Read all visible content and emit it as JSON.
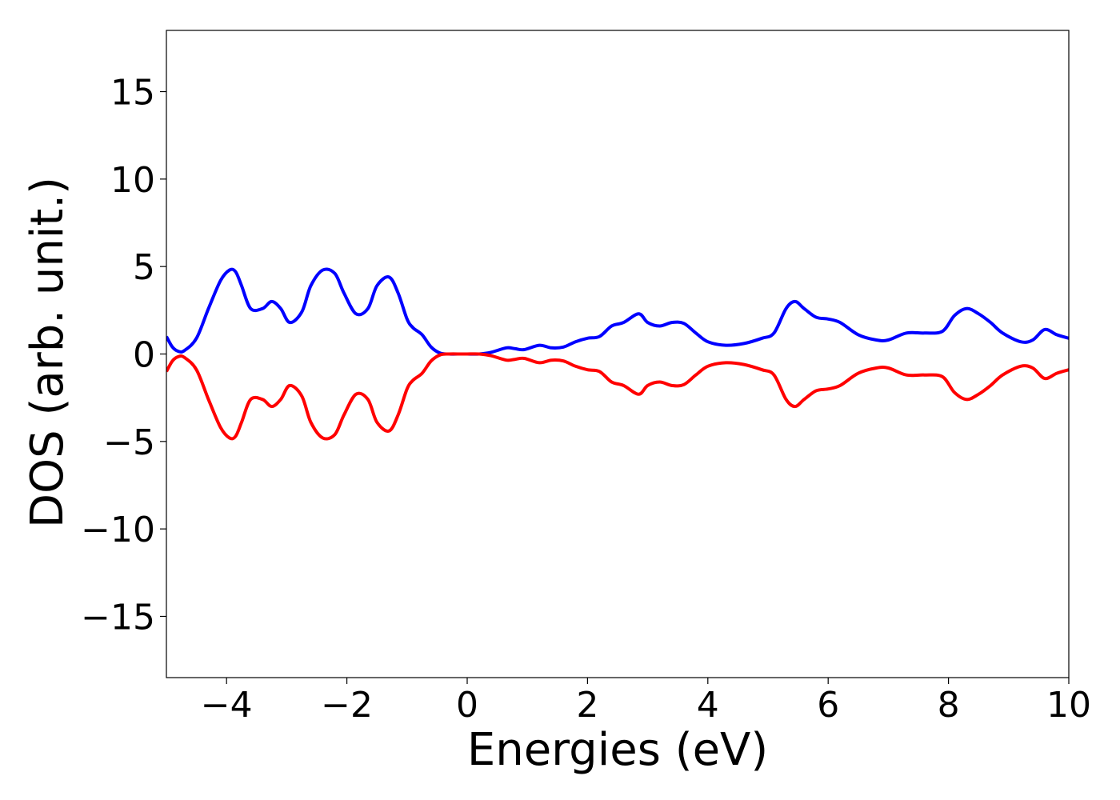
{
  "chart_data": {
    "type": "line",
    "xlabel": "Energies (eV)",
    "ylabel": "DOS (arb. unit.)",
    "xlim": [
      -5,
      10
    ],
    "ylim": [
      -18.5,
      18.5
    ],
    "xticks": [
      -4,
      -2,
      0,
      2,
      4,
      6,
      8,
      10
    ],
    "xtick_labels": [
      "−4",
      "−2",
      "0",
      "2",
      "4",
      "6",
      "8",
      "10"
    ],
    "yticks": [
      15,
      10,
      5,
      0,
      -5,
      -10,
      -15
    ],
    "ytick_labels": [
      "15",
      "10",
      "5",
      "0",
      "−5",
      "−10",
      "−15"
    ],
    "grid": false,
    "legend": "none",
    "series": [
      {
        "color": "#0000ff",
        "x": [
          -5.0,
          -4.9,
          -4.8,
          -4.7,
          -4.5,
          -4.3,
          -4.1,
          -3.95,
          -3.85,
          -3.75,
          -3.6,
          -3.4,
          -3.25,
          -3.1,
          -2.95,
          -2.75,
          -2.6,
          -2.4,
          -2.2,
          -2.05,
          -1.85,
          -1.65,
          -1.5,
          -1.3,
          -1.15,
          -1.0,
          -0.9,
          -0.75,
          -0.6,
          -0.45,
          -0.3,
          -0.1,
          0.0,
          0.2,
          0.4,
          0.65,
          0.8,
          0.95,
          1.2,
          1.4,
          1.6,
          1.8,
          2.0,
          2.2,
          2.4,
          2.6,
          2.85,
          3.0,
          3.2,
          3.4,
          3.6,
          3.8,
          4.0,
          4.3,
          4.6,
          4.9,
          5.1,
          5.3,
          5.45,
          5.6,
          5.8,
          6.0,
          6.2,
          6.5,
          6.8,
          7.0,
          7.3,
          7.6,
          7.9,
          8.1,
          8.3,
          8.5,
          8.7,
          8.9,
          9.2,
          9.4,
          9.6,
          9.8,
          10.0
        ],
        "y": [
          1.0,
          0.4,
          0.15,
          0.2,
          0.9,
          2.6,
          4.2,
          4.8,
          4.7,
          3.9,
          2.6,
          2.6,
          3.0,
          2.6,
          1.8,
          2.4,
          3.9,
          4.8,
          4.6,
          3.5,
          2.3,
          2.6,
          3.9,
          4.4,
          3.5,
          2.0,
          1.5,
          1.1,
          0.4,
          0.05,
          0.0,
          0.0,
          0.0,
          0.0,
          0.1,
          0.35,
          0.3,
          0.25,
          0.5,
          0.35,
          0.4,
          0.7,
          0.9,
          1.0,
          1.6,
          1.8,
          2.3,
          1.8,
          1.6,
          1.8,
          1.75,
          1.2,
          0.7,
          0.5,
          0.6,
          0.9,
          1.2,
          2.6,
          3.0,
          2.6,
          2.1,
          2.0,
          1.8,
          1.1,
          0.8,
          0.8,
          1.2,
          1.2,
          1.3,
          2.2,
          2.6,
          2.3,
          1.8,
          1.2,
          0.7,
          0.8,
          1.4,
          1.1,
          0.9
        ]
      },
      {
        "color": "#ff0000",
        "x": [
          -5.0,
          -4.9,
          -4.8,
          -4.7,
          -4.5,
          -4.3,
          -4.1,
          -3.95,
          -3.85,
          -3.75,
          -3.6,
          -3.4,
          -3.25,
          -3.1,
          -2.95,
          -2.75,
          -2.6,
          -2.4,
          -2.2,
          -2.05,
          -1.85,
          -1.65,
          -1.5,
          -1.3,
          -1.15,
          -1.0,
          -0.9,
          -0.75,
          -0.6,
          -0.45,
          -0.3,
          -0.1,
          0.0,
          0.2,
          0.4,
          0.65,
          0.8,
          0.95,
          1.2,
          1.4,
          1.6,
          1.8,
          2.0,
          2.2,
          2.4,
          2.6,
          2.85,
          3.0,
          3.2,
          3.4,
          3.6,
          3.8,
          4.0,
          4.3,
          4.6,
          4.9,
          5.1,
          5.3,
          5.45,
          5.6,
          5.8,
          6.0,
          6.2,
          6.5,
          6.8,
          7.0,
          7.3,
          7.6,
          7.9,
          8.1,
          8.3,
          8.5,
          8.7,
          8.9,
          9.2,
          9.4,
          9.6,
          9.8,
          10.0
        ],
        "y": [
          -1.0,
          -0.4,
          -0.15,
          -0.2,
          -0.9,
          -2.6,
          -4.2,
          -4.8,
          -4.7,
          -3.9,
          -2.6,
          -2.6,
          -3.0,
          -2.6,
          -1.8,
          -2.4,
          -3.9,
          -4.8,
          -4.6,
          -3.5,
          -2.3,
          -2.6,
          -3.9,
          -4.4,
          -3.5,
          -2.0,
          -1.5,
          -1.1,
          -0.4,
          -0.05,
          0.0,
          0.0,
          0.0,
          0.0,
          -0.1,
          -0.35,
          -0.3,
          -0.25,
          -0.5,
          -0.35,
          -0.4,
          -0.7,
          -0.9,
          -1.0,
          -1.6,
          -1.8,
          -2.3,
          -1.8,
          -1.6,
          -1.8,
          -1.75,
          -1.2,
          -0.7,
          -0.5,
          -0.6,
          -0.9,
          -1.2,
          -2.6,
          -3.0,
          -2.6,
          -2.1,
          -2.0,
          -1.8,
          -1.1,
          -0.8,
          -0.8,
          -1.2,
          -1.2,
          -1.3,
          -2.2,
          -2.6,
          -2.3,
          -1.8,
          -1.2,
          -0.7,
          -0.8,
          -1.4,
          -1.1,
          -0.9
        ]
      }
    ]
  }
}
